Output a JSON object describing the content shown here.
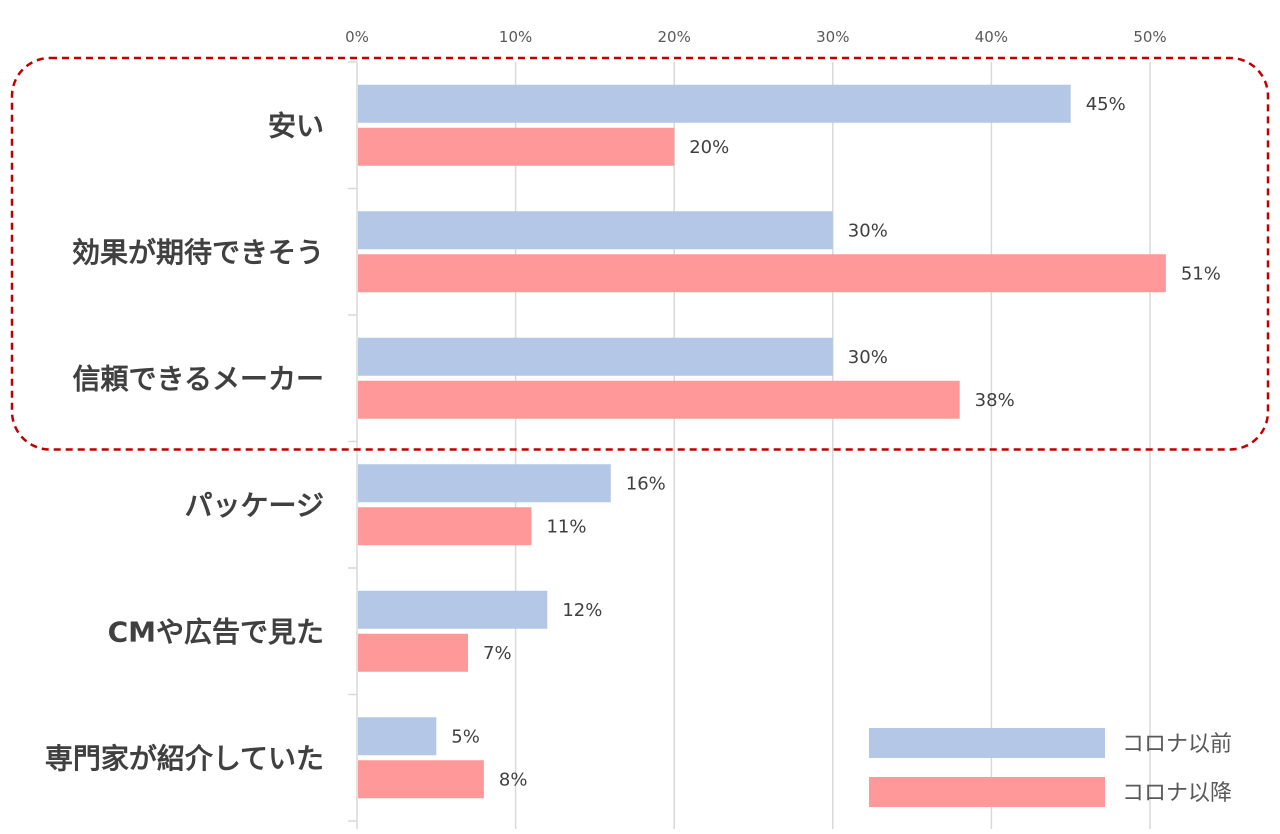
{
  "chart_data": {
    "type": "bar",
    "orientation": "horizontal",
    "title": "",
    "xlabel": "",
    "ylabel": "",
    "xlim": [
      0,
      50
    ],
    "x_ticks": [
      "0%",
      "10%",
      "20%",
      "30%",
      "40%",
      "50%"
    ],
    "x_ticks_position": "top",
    "grid": true,
    "legend_position": "bottom-right",
    "categories": [
      "安い",
      "効果が期待できそう",
      "信頼できるメーカー",
      "パッケージ",
      "CMや広告で見た",
      "専門家が紹介していた"
    ],
    "series": [
      {
        "name": "コロナ以前",
        "color": "#B4C7E7",
        "values": [
          45,
          30,
          30,
          16,
          12,
          5
        ],
        "labels": [
          "45%",
          "30%",
          "30%",
          "16%",
          "12%",
          "5%"
        ]
      },
      {
        "name": "コロナ以降",
        "color": "#FF9999",
        "values": [
          20,
          51,
          38,
          11,
          7,
          8
        ],
        "labels": [
          "20%",
          "51%",
          "38%",
          "11%",
          "7%",
          "8%"
        ]
      }
    ],
    "highlight": {
      "categories": [
        "安い",
        "効果が期待できそう",
        "信頼できるメーカー"
      ],
      "style": "dashed",
      "color": "#C00000"
    }
  }
}
